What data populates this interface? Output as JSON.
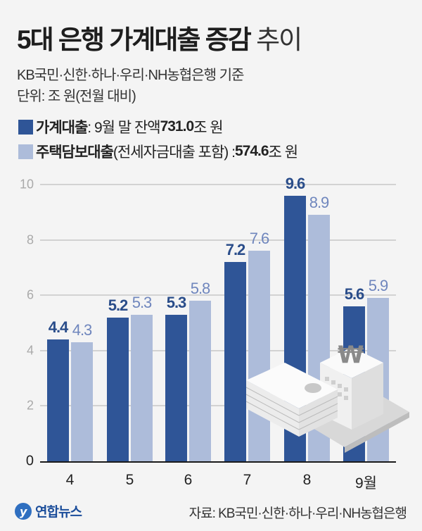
{
  "header": {
    "title_bold": "5대 은행 가계대출 증감",
    "title_light": "추이",
    "subtitle": "KB국민·신한·하나·우리·NH농협은행 기준",
    "unit": "단위: 조 원(전월 대비)"
  },
  "legend": [
    {
      "label": "가계대출",
      "detail_prefix": ": 9월 말 잔액 ",
      "detail_value": "731.0",
      "detail_suffix": "조 원",
      "color": "#2f5597"
    },
    {
      "label": "주택담보대출",
      "detail_prefix": "(전세자금대출 포함) : ",
      "detail_value": "574.6",
      "detail_suffix": "조 원",
      "color": "#adbcda"
    }
  ],
  "footer": {
    "logo": "연합뉴스",
    "source": "자료: KB국민·신한·하나·우리·NH농협은행"
  },
  "colors": {
    "household_loans": "#2f5597",
    "mortgage_loans": "#adbcda",
    "background": "#f4f4f4"
  },
  "chart_data": {
    "type": "bar",
    "title": "5대 은행 가계대출 증감 추이",
    "subtitle": "KB국민·신한·하나·우리·NH농협은행 기준",
    "ylabel": "단위: 조 원(전월 대비)",
    "xlabel": "",
    "categories": [
      "4",
      "5",
      "6",
      "7",
      "8",
      "9월"
    ],
    "series": [
      {
        "name": "가계대출",
        "values": [
          4.4,
          5.2,
          5.3,
          7.2,
          9.6,
          5.6
        ],
        "color": "#2f5597"
      },
      {
        "name": "주택담보대출(전세자금대출 포함)",
        "values": [
          4.3,
          5.3,
          5.8,
          7.6,
          8.9,
          5.9
        ],
        "color": "#adbcda"
      }
    ],
    "yticks": [
      "0",
      "2",
      "4",
      "6",
      "8",
      "10"
    ],
    "ylim": [
      0,
      10
    ],
    "grid": true,
    "legend_position": "top",
    "data_labels": {
      "dark": [
        "4.4",
        "5.2",
        "5.3",
        "7.2",
        "9.6",
        "5.6"
      ],
      "light": [
        "4.3",
        "5.3",
        "5.8",
        "7.6",
        "8.9",
        "5.9"
      ]
    }
  }
}
